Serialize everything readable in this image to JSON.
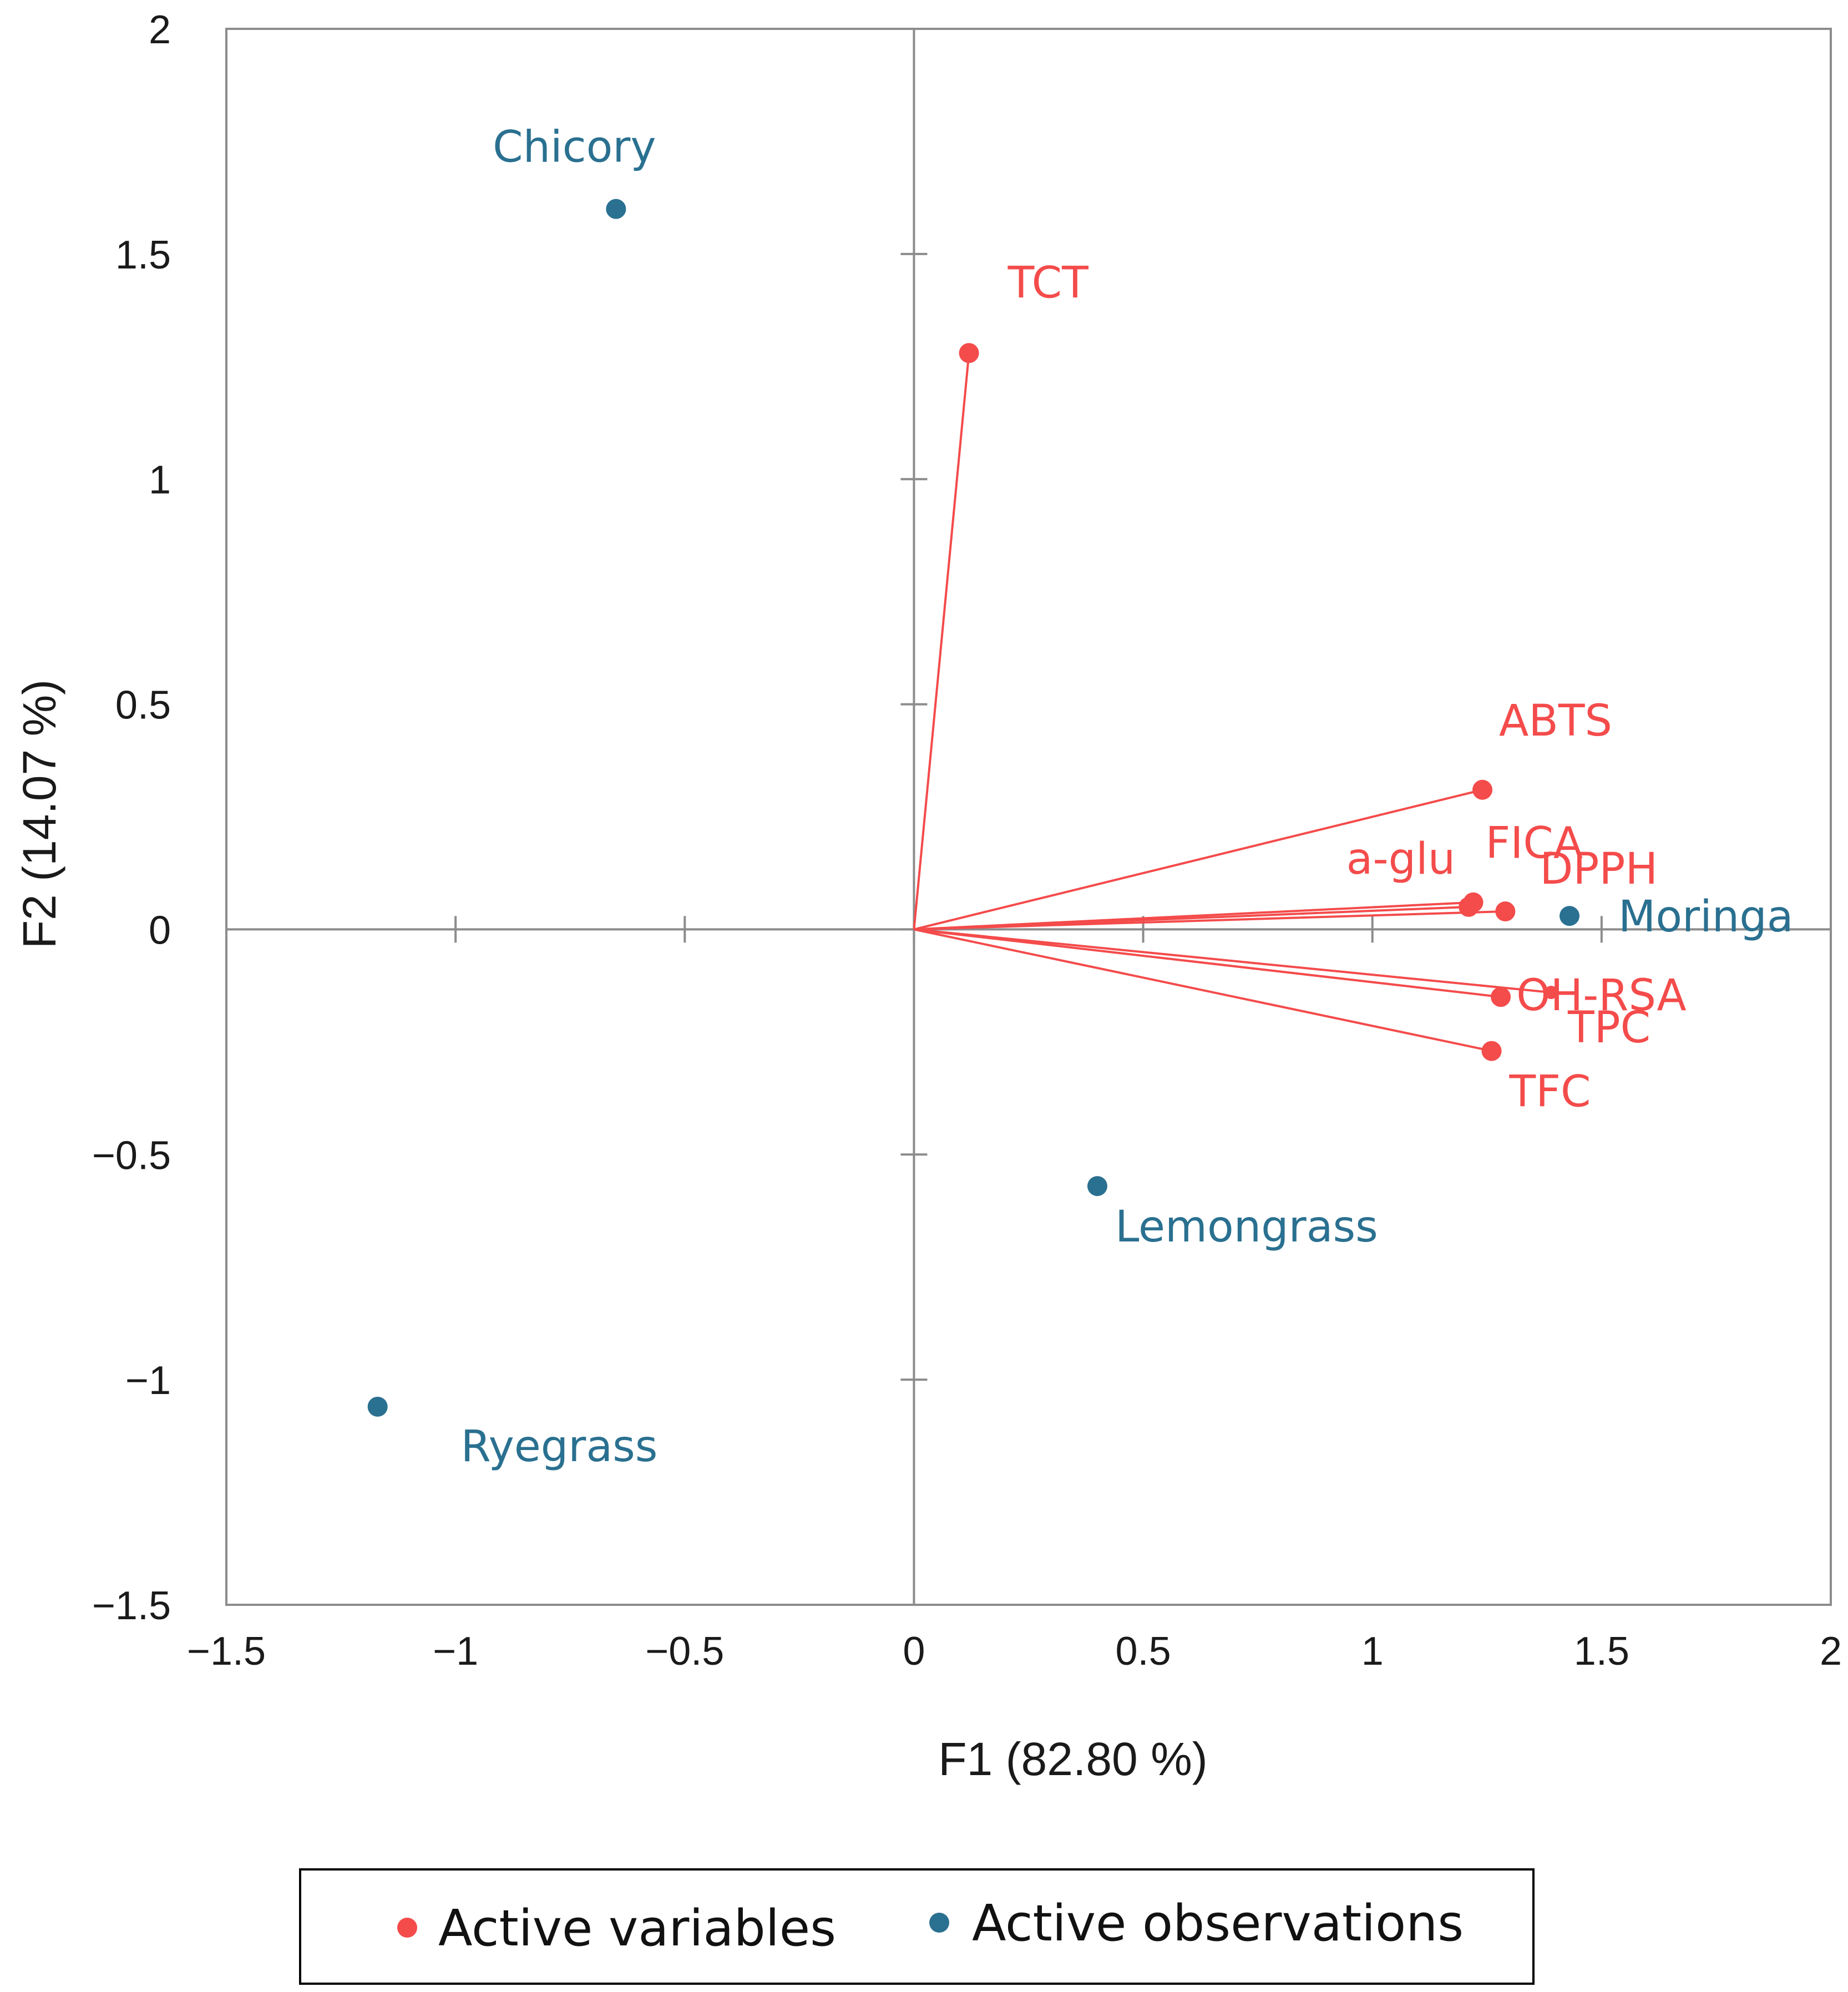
{
  "chart_data": {
    "type": "scatter",
    "title": "",
    "xlabel": "F1 (82.80 %)",
    "ylabel": "F2 (14.07 %)",
    "xlim": [
      -1.5,
      2
    ],
    "ylim": [
      -1.5,
      2
    ],
    "x_ticks": [
      -1.5,
      -1,
      -0.5,
      0,
      0.5,
      1,
      1.5,
      2
    ],
    "y_ticks": [
      -1.5,
      -1,
      -0.5,
      0,
      0.5,
      1,
      1.5,
      2
    ],
    "x_tick_labels": [
      "−1.5",
      "−1",
      "−0.5",
      "0",
      "0.5",
      "1",
      "1.5",
      "2"
    ],
    "y_tick_labels": [
      "−1.5",
      "−1",
      "−0.5",
      "0",
      "0.5",
      "1",
      "1.5",
      "2"
    ],
    "grid": false,
    "colors": {
      "variables": "#f44b4b",
      "observations": "#2a7090"
    },
    "series": [
      {
        "name": "Active variables",
        "kind": "vectors",
        "points": [
          {
            "label": "TCT",
            "x": 0.12,
            "y": 1.28
          },
          {
            "label": "ABTS",
            "x": 1.24,
            "y": 0.31
          },
          {
            "label": "FICA",
            "x": 1.22,
            "y": 0.06
          },
          {
            "label": "a-glu",
            "x": 1.21,
            "y": 0.05
          },
          {
            "label": "DPPH",
            "x": 1.29,
            "y": 0.04
          },
          {
            "label": "OH-RSA",
            "x": 1.28,
            "y": -0.15
          },
          {
            "label": "TPC",
            "x": 1.39,
            "y": -0.14
          },
          {
            "label": "TFC",
            "x": 1.26,
            "y": -0.27
          }
        ]
      },
      {
        "name": "Active observations",
        "kind": "points",
        "points": [
          {
            "label": "Chicory",
            "x": -0.65,
            "y": 1.6
          },
          {
            "label": "Moringa",
            "x": 1.43,
            "y": 0.03
          },
          {
            "label": "Lemongrass",
            "x": 0.4,
            "y": -0.57
          },
          {
            "label": "Ryegrass",
            "x": -1.17,
            "y": -1.06
          }
        ]
      }
    ],
    "legend": {
      "position": "bottom",
      "entries": [
        "Active variables",
        "Active observations"
      ]
    }
  }
}
